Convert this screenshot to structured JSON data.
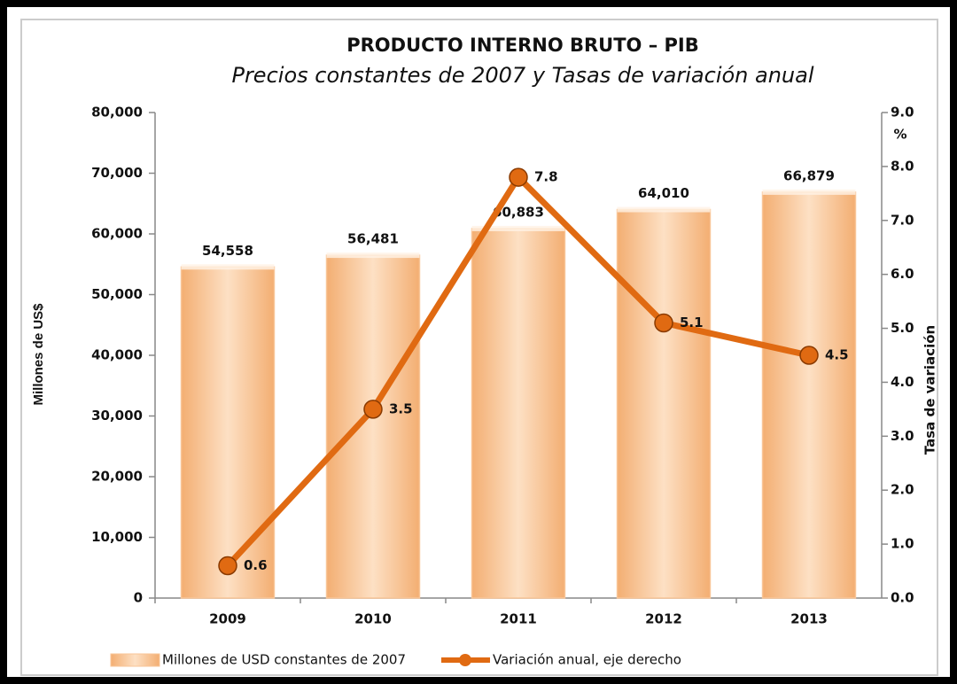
{
  "chart_data": {
    "type": "bar",
    "title": "PRODUCTO INTERNO BRUTO – PIB",
    "subtitle": "Precios  constantes de 2007 y Tasas de variación anual",
    "y_label": "Millones de US$",
    "y2_label": "Tasa de variación",
    "y2_unit": "%",
    "categories": [
      "2009",
      "2010",
      "2011",
      "2012",
      "2013"
    ],
    "series": [
      {
        "name": "Millones de USD constantes de 2007",
        "type": "bar",
        "color": "#f8c597",
        "values": [
          54558,
          56481,
          60883,
          64010,
          66879
        ],
        "value_labels": [
          "54,558",
          "56,481",
          "60,883",
          "64,010",
          "66,879"
        ]
      },
      {
        "name": "Variación anual, eje derecho",
        "type": "line",
        "axis": "y2",
        "color": "#e06a12",
        "values": [
          0.6,
          3.5,
          7.8,
          5.1,
          4.5
        ]
      }
    ],
    "ylim": [
      0,
      80000
    ],
    "yticks": [
      0,
      {
        "value": 10000,
        "label": "10,000"
      },
      {
        "value": 20000,
        "label": "20,000"
      },
      {
        "value": 30000,
        "label": "30,000"
      },
      {
        "value": 40000,
        "label": "40,000"
      },
      {
        "value": 50000,
        "label": "50,000"
      },
      {
        "value": 60000,
        "label": "60,000"
      },
      {
        "value": 70000,
        "label": "70,000"
      },
      {
        "value": 80000,
        "label": "80,000"
      }
    ],
    "y2lim": [
      0,
      9
    ],
    "y2ticks": [
      {
        "value": 0,
        "label": "0.0"
      },
      {
        "value": 1,
        "label": "1.0"
      },
      {
        "value": 2,
        "label": "2.0"
      },
      {
        "value": 3,
        "label": "3.0"
      },
      {
        "value": 4,
        "label": "4.0"
      },
      {
        "value": 5,
        "label": "5.0"
      },
      {
        "value": 6,
        "label": "6.0"
      },
      {
        "value": 7,
        "label": "7.0"
      },
      {
        "value": 8,
        "label": "8.0"
      },
      {
        "value": 9,
        "label": "9.0"
      }
    ]
  }
}
